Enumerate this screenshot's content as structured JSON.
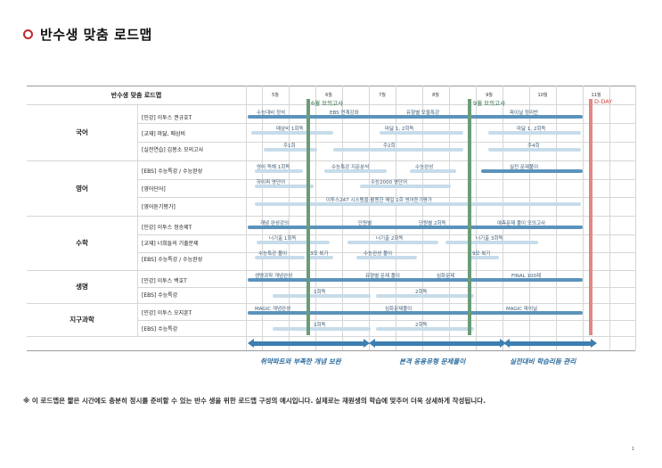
{
  "title": "반수생 맞춤 로드맵",
  "table": {
    "header_title": "반수생 맞춤 로드맵",
    "months": [
      "5월",
      "6월",
      "7월",
      "8월",
      "9월",
      "10월",
      "11월"
    ]
  },
  "markers": {
    "june_mock": "6월 모의고사",
    "sept_mock": "9월 모의고사",
    "dday": "D-DAY"
  },
  "subjects": [
    {
      "name": "국어",
      "courses": [
        "[인강] 이투스 권규호T",
        "[교재] 마닳, 매삼비",
        "[실전연습] 김봉소 모의고사"
      ]
    },
    {
      "name": "영어",
      "courses": [
        "[EBS] 수능특강 / 수능완성",
        "[영어단어]",
        "[영어듣기평가]"
      ]
    },
    {
      "name": "수학",
      "courses": [
        "[인강] 이투스 정승제T",
        "[교재] 너희들의 기출문제",
        "[EBS] 수능특강 / 수능완성"
      ]
    },
    {
      "name": "생명",
      "courses": [
        "[인강] 이투스 백호T",
        "[EBS] 수능특강"
      ]
    },
    {
      "name": "지구과학",
      "courses": [
        "[인강] 이투스 오지훈T",
        "[EBS] 수능특강"
      ]
    }
  ],
  "bar_labels": {
    "kor1_a": "수능대비 정석",
    "kor1_b": "EBS 연계강좌",
    "kor1_c": "유형별 모듈특강",
    "kor1_d": "파이널 정리반",
    "kor2_a": "매삼비 1회독",
    "kor2_b": "마닳 1, 2회독",
    "kor2_c": "마닳 1, 2회독",
    "kor3_a": "주1회",
    "kor3_b": "주2회",
    "kor3_c": "주4회",
    "eng1_a": "영어 독해 1회독",
    "eng1_b": "수능특강 지문분석",
    "eng1_c": "수능완성",
    "eng1_d": "실전 문제풀이",
    "eng2_a": "하이퍼 영단어",
    "eng2_b": "수능2000 영단어",
    "eng3_a": "이투스247 시스템을 활용한 매일 1회 영어듣기평가",
    "math1_a": "개념 완성강의",
    "math1_b": "단원별",
    "math1_c": "단원별 2회독",
    "math1_d": "예측문제 풀이 모의고사",
    "math2_a": "너기출 1회독",
    "math2_b": "너기출 2회독",
    "math2_c": "너기출 3회독",
    "math3_a": "수능특강 풀이",
    "math3_b": "3모 복기",
    "math3_c": "수능완성 풀이",
    "math3_d": "9모 복기",
    "bio1_a": "생명과학 개념완성",
    "bio1_b": "유형별 문제 풀이",
    "bio1_c": "심화문제",
    "bio1_d": "FINAL 100제",
    "bio2_a": "1회독",
    "bio2_b": "2회독",
    "earth1_a": "MAGIC 개념완성",
    "earth1_b": "심화문제풀이",
    "earth1_c": "MAGIC 파이널",
    "earth2_a": "1회독",
    "earth2_b": "2회독"
  },
  "phases": [
    "취약파트와 부족한 개념 보완",
    "본격 응용유형 문제풀이",
    "실전대비 학습리듬 관리"
  ],
  "footnote": "※ 이 로드맵은 짧은 시간에도 충분히 정시를 준비할 수 있는 반수 생을 위한 로드맵 구성의 예시입니다. 실제로는 재원생의 학습에 맞추어 더욱 상세하게 작성됩니다.",
  "page_number": "1"
}
